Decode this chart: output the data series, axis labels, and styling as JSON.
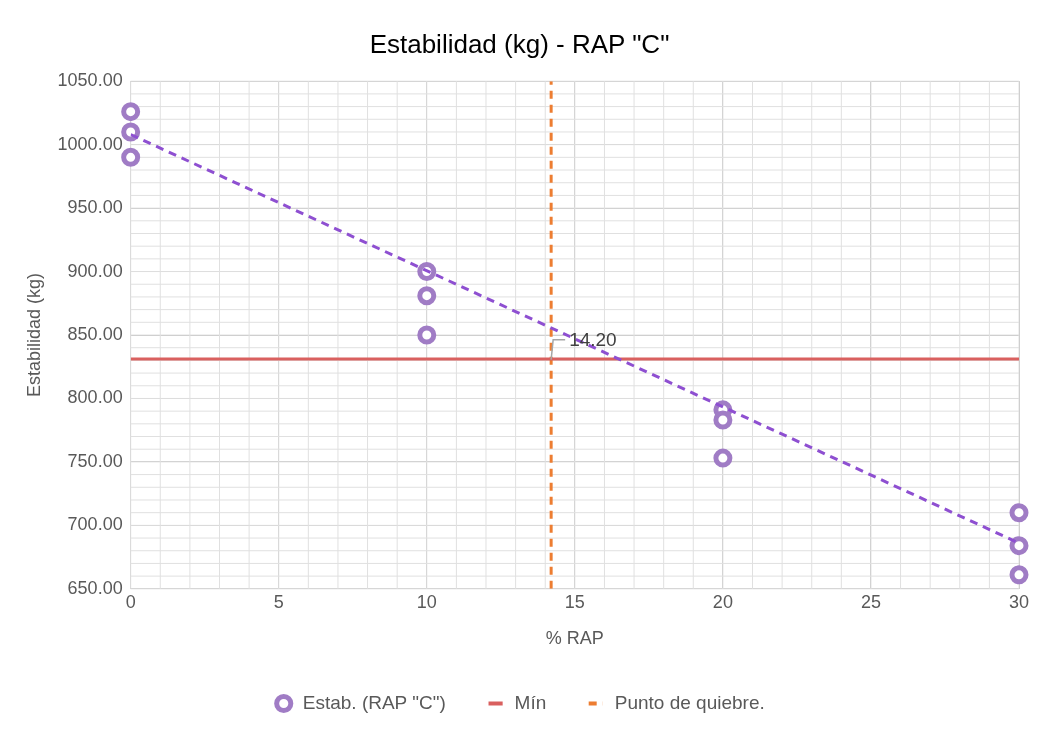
{
  "chart_data": {
    "type": "scatter",
    "title": "Estabilidad (kg) - RAP \"C\"",
    "xlabel": "% RAP",
    "ylabel": "Estabilidad (kg)",
    "series": [
      {
        "name": "Estab. (RAP \"C\")",
        "marker": "circle",
        "color": "#a07cc5",
        "x": [
          0,
          0,
          0,
          10,
          10,
          10,
          20,
          20,
          20,
          30,
          30,
          30
        ],
        "values": [
          1026,
          1010,
          990,
          900,
          881,
          850,
          791,
          783,
          753,
          710,
          684,
          661
        ]
      },
      {
        "type": "line",
        "color": "#8e4fd1",
        "line_style": "dashed",
        "marker": "none",
        "x": [
          0,
          30
        ],
        "values": [
          1008,
          686
        ]
      }
    ],
    "ref_lines": [
      {
        "axis": "y",
        "value": 831,
        "label": "Mín",
        "color": "#d9605f",
        "line_style": "solid"
      },
      {
        "axis": "x",
        "value": 14.2,
        "label": "Punto de quiebre.",
        "color": "#ed7d31",
        "line_style": "dashed"
      }
    ],
    "annotations": [
      {
        "text": "14.20",
        "x": 14.2,
        "y": 840
      }
    ],
    "xlim": [
      0,
      30
    ],
    "xticks": [
      0,
      5,
      10,
      15,
      20,
      25,
      30
    ],
    "ylim": [
      650,
      1050
    ],
    "yticks": [
      {
        "value": 650,
        "label": "650.00"
      },
      {
        "value": 700,
        "label": "700.00"
      },
      {
        "value": 750,
        "label": "750.00"
      },
      {
        "value": 800,
        "label": "800.00"
      },
      {
        "value": 850,
        "label": "850.00"
      },
      {
        "value": 900,
        "label": "900.00"
      },
      {
        "value": 950,
        "label": "950.00"
      },
      {
        "value": 1000,
        "label": "1000.00"
      },
      {
        "value": 1050,
        "label": "1050.00"
      }
    ],
    "grid": true,
    "legend": "bottom"
  }
}
